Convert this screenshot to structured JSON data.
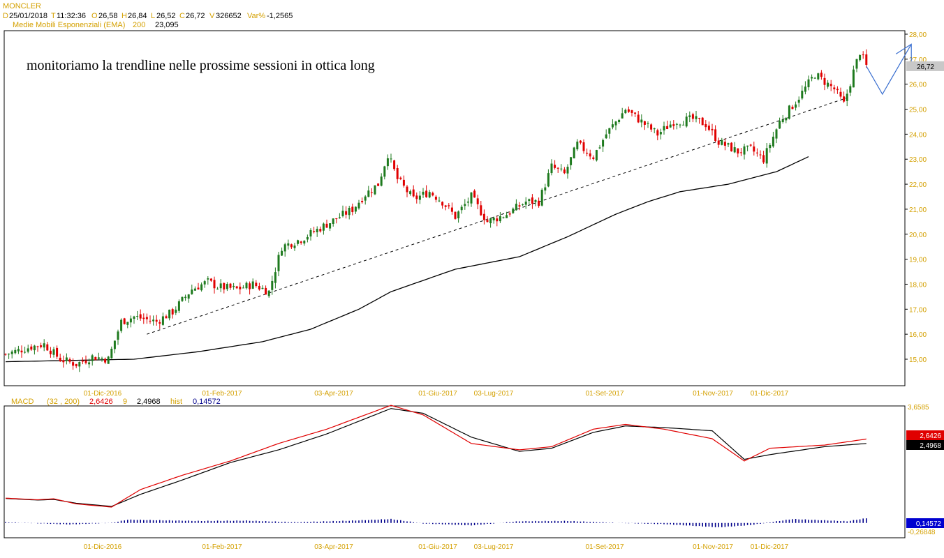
{
  "header": {
    "symbol": "MONCLER",
    "date_label": "D",
    "date": "25/01/2018",
    "time_label": "T",
    "time": "11:32:36",
    "open_label": "O",
    "open": "26,58",
    "high_label": "H",
    "high": "26,84",
    "low_label": "L",
    "low": "26,52",
    "close_label": "C",
    "close": "26,72",
    "volume_label": "V",
    "volume": "326652",
    "var_label": "Var%",
    "var": "-1,2565",
    "ema_label": "Medie Mobili Esponenziali (EMA)",
    "ema_period": "200",
    "ema_value": "23,095"
  },
  "annotation": "monitoriamo la trendline nelle prossime sessioni in ottica long",
  "macd_header": {
    "label": "MACD",
    "params": "(32 , 200)",
    "macd_value": "2,6426",
    "signal_period": "9",
    "signal_value": "2,4968",
    "hist_label": "hist",
    "hist_value": "0,14572"
  },
  "colors": {
    "up": "#1e7a1e",
    "down": "#e00000",
    "ema": "#000000",
    "axis_text": "#d4a000",
    "arrow": "#3a6fd0",
    "macd_line": "#e00000",
    "signal_line": "#000000",
    "hist": "#00008b",
    "last_price_bg": "#c8c8c8"
  },
  "chart_data": [
    {
      "type": "candlestick",
      "title": "MONCLER",
      "ylim": [
        14.4,
        28.1
      ],
      "y_ticks": [
        "28,00",
        "27,00",
        "26,00",
        "25,00",
        "24,00",
        "23,00",
        "22,00",
        "21,00",
        "20,00",
        "19,00",
        "18,00",
        "17,00",
        "16,00",
        "15,00"
      ],
      "x_ticks": [
        "01-Dic-2016",
        "01-Feb-2017",
        "03-Apr-2017",
        "01-Giu-2017",
        "03-Lug-2017",
        "01-Set-2017",
        "01-Nov-2017",
        "01-Dic-2017"
      ],
      "last_price_label": "26,72",
      "series": [
        {
          "name": "EMA 200",
          "type": "line",
          "anchors": [
            [
              0,
              14.9
            ],
            [
              40,
              15.0
            ],
            [
              60,
              15.3
            ],
            [
              80,
              15.7
            ],
            [
              95,
              16.2
            ],
            [
              110,
              17.0
            ],
            [
              120,
              17.7
            ],
            [
              140,
              18.6
            ],
            [
              160,
              19.1
            ],
            [
              175,
              19.9
            ],
            [
              190,
              20.8
            ],
            [
              200,
              21.3
            ],
            [
              210,
              21.7
            ],
            [
              225,
              22.0
            ],
            [
              240,
              22.5
            ],
            [
              250,
              23.1
            ]
          ]
        }
      ],
      "trendline": {
        "from": [
          44,
          16.0
        ],
        "to": [
          263,
          25.5
        ],
        "style": "dashed"
      },
      "price_anchors": [
        [
          0,
          15.2
        ],
        [
          8,
          15.5
        ],
        [
          12,
          15.6
        ],
        [
          17,
          15.0
        ],
        [
          22,
          14.8
        ],
        [
          27,
          15.1
        ],
        [
          32,
          15.0
        ],
        [
          36,
          16.5
        ],
        [
          40,
          16.7
        ],
        [
          47,
          16.5
        ],
        [
          52,
          16.9
        ],
        [
          58,
          17.8
        ],
        [
          63,
          18.1
        ],
        [
          66,
          17.9
        ],
        [
          72,
          17.8
        ],
        [
          77,
          18.0
        ],
        [
          82,
          17.7
        ],
        [
          86,
          19.5
        ],
        [
          92,
          19.8
        ],
        [
          100,
          20.4
        ],
        [
          108,
          21.0
        ],
        [
          112,
          21.6
        ],
        [
          116,
          22.0
        ],
        [
          119,
          23.2
        ],
        [
          122,
          22.2
        ],
        [
          127,
          21.4
        ],
        [
          132,
          21.7
        ],
        [
          136,
          21.3
        ],
        [
          140,
          20.7
        ],
        [
          145,
          21.5
        ],
        [
          150,
          20.5
        ],
        [
          156,
          20.8
        ],
        [
          162,
          21.3
        ],
        [
          166,
          21.3
        ],
        [
          170,
          22.7
        ],
        [
          174,
          22.4
        ],
        [
          178,
          23.6
        ],
        [
          183,
          23.1
        ],
        [
          187,
          24.0
        ],
        [
          193,
          25.0
        ],
        [
          197,
          24.6
        ],
        [
          203,
          24.0
        ],
        [
          208,
          24.5
        ],
        [
          214,
          24.6
        ],
        [
          218,
          24.4
        ],
        [
          222,
          23.7
        ],
        [
          228,
          23.3
        ],
        [
          232,
          23.4
        ],
        [
          236,
          23.0
        ],
        [
          241,
          24.5
        ],
        [
          246,
          25.3
        ],
        [
          252,
          26.4
        ],
        [
          258,
          25.8
        ],
        [
          261,
          25.2
        ],
        [
          264,
          26.5
        ],
        [
          266,
          27.3
        ],
        [
          268,
          26.72
        ]
      ],
      "projection_arrow": {
        "points": [
          [
            268,
            26.72
          ],
          [
            273,
            25.6
          ],
          [
            282,
            27.6
          ]
        ],
        "arrow_at": [
          282,
          27.6
        ]
      }
    },
    {
      "type": "line",
      "title": "MACD",
      "ylim": [
        -0.26848,
        3.6585
      ],
      "y_ticks": [
        "3,6585",
        "-0,26848"
      ],
      "x_ticks": [
        "01-Dic-2016",
        "01-Feb-2017",
        "03-Apr-2017",
        "01-Giu-2017",
        "03-Lug-2017",
        "01-Set-2017",
        "01-Nov-2017",
        "01-Dic-2017"
      ],
      "series": [
        {
          "name": "2,6426",
          "color": "#e00000",
          "anchors": [
            [
              0,
              0.78
            ],
            [
              10,
              0.73
            ],
            [
              15,
              0.76
            ],
            [
              22,
              0.6
            ],
            [
              33,
              0.5
            ],
            [
              42,
              1.05
            ],
            [
              55,
              1.5
            ],
            [
              70,
              1.95
            ],
            [
              85,
              2.5
            ],
            [
              100,
              2.95
            ],
            [
              120,
              3.7
            ],
            [
              130,
              3.4
            ],
            [
              145,
              2.5
            ],
            [
              160,
              2.3
            ],
            [
              170,
              2.4
            ],
            [
              183,
              2.95
            ],
            [
              193,
              3.1
            ],
            [
              205,
              2.95
            ],
            [
              220,
              2.65
            ],
            [
              230,
              1.95
            ],
            [
              238,
              2.35
            ],
            [
              255,
              2.45
            ],
            [
              268,
              2.64
            ]
          ]
        },
        {
          "name": "2,4968",
          "color": "#000000",
          "anchors": [
            [
              0,
              0.77
            ],
            [
              10,
              0.72
            ],
            [
              15,
              0.74
            ],
            [
              22,
              0.62
            ],
            [
              33,
              0.52
            ],
            [
              42,
              0.9
            ],
            [
              55,
              1.35
            ],
            [
              70,
              1.9
            ],
            [
              85,
              2.3
            ],
            [
              100,
              2.8
            ],
            [
              120,
              3.6
            ],
            [
              130,
              3.45
            ],
            [
              145,
              2.7
            ],
            [
              160,
              2.25
            ],
            [
              170,
              2.35
            ],
            [
              183,
              2.85
            ],
            [
              193,
              3.05
            ],
            [
              205,
              3.0
            ],
            [
              220,
              2.9
            ],
            [
              230,
              2.0
            ],
            [
              238,
              2.15
            ],
            [
              255,
              2.4
            ],
            [
              268,
              2.5
            ]
          ]
        }
      ],
      "histogram": {
        "name": "0,14572",
        "anchors": [
          [
            0,
            0.02
          ],
          [
            20,
            -0.05
          ],
          [
            33,
            0.0
          ],
          [
            38,
            0.1
          ],
          [
            60,
            0.06
          ],
          [
            75,
            0.07
          ],
          [
            90,
            0.02
          ],
          [
            108,
            0.07
          ],
          [
            120,
            0.12
          ],
          [
            130,
            -0.02
          ],
          [
            145,
            -0.08
          ],
          [
            160,
            0.05
          ],
          [
            175,
            0.06
          ],
          [
            190,
            0.0
          ],
          [
            205,
            -0.04
          ],
          [
            222,
            -0.14
          ],
          [
            232,
            -0.07
          ],
          [
            245,
            0.12
          ],
          [
            255,
            0.08
          ],
          [
            262,
            0.05
          ],
          [
            268,
            0.146
          ]
        ]
      }
    }
  ]
}
